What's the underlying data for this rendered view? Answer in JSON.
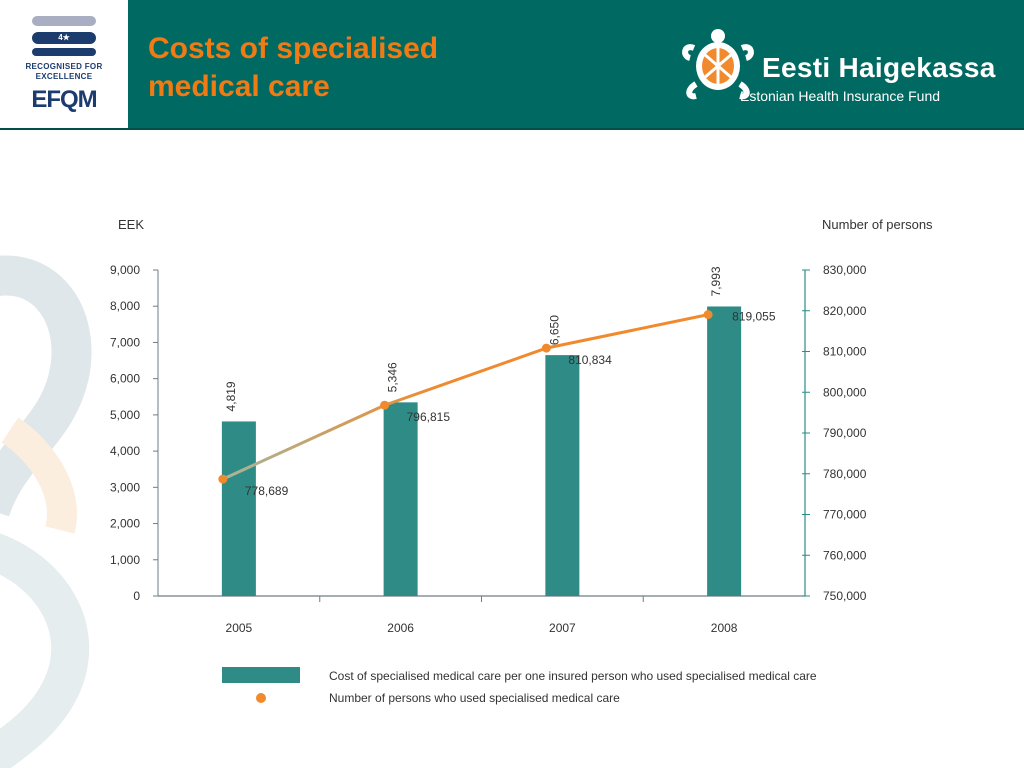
{
  "header": {
    "title": "Costs of specialised medical care",
    "efqm": {
      "badge": "4★",
      "line1": "RECOGNISED FOR",
      "line2": "EXCELLENCE",
      "mark": "EFQM"
    },
    "org_name": "Eesti Haigekassa",
    "org_subtitle": "Estonian Health Insurance Fund"
  },
  "colors": {
    "header_bg": "#006a62",
    "bar": "#2e8b86",
    "line": "#f08a2c",
    "line_start": "#a8b59a",
    "title": "#f07a14"
  },
  "chart_data": {
    "type": "bar",
    "categories": [
      "2005",
      "2006",
      "2007",
      "2008"
    ],
    "y_left_label": "EEK",
    "y_right_label": "Number of persons",
    "y_left_lim": [
      0,
      9000
    ],
    "y_right_lim": [
      750000,
      830000
    ],
    "y_left_ticks": [
      "0",
      "1,000",
      "2,000",
      "3,000",
      "4,000",
      "5,000",
      "6,000",
      "7,000",
      "8,000",
      "9,000"
    ],
    "y_right_ticks": [
      "750,000",
      "760,000",
      "770,000",
      "780,000",
      "790,000",
      "800,000",
      "810,000",
      "820,000",
      "830,000"
    ],
    "series": [
      {
        "name": "Cost of specialised medical care per one insured person who used specialised medical care",
        "type": "bar",
        "axis": "left",
        "values": [
          4819,
          5346,
          6650,
          7993
        ],
        "labels": [
          "4,819",
          "5,346",
          "6,650",
          "7,993"
        ]
      },
      {
        "name": "Number of persons who used specialised medical care",
        "type": "line",
        "axis": "right",
        "values": [
          778689,
          796815,
          810834,
          819055
        ],
        "labels": [
          "778,689",
          "796,815",
          "810,834",
          "819,055"
        ]
      }
    ],
    "grid": false,
    "legend": "bottom"
  }
}
